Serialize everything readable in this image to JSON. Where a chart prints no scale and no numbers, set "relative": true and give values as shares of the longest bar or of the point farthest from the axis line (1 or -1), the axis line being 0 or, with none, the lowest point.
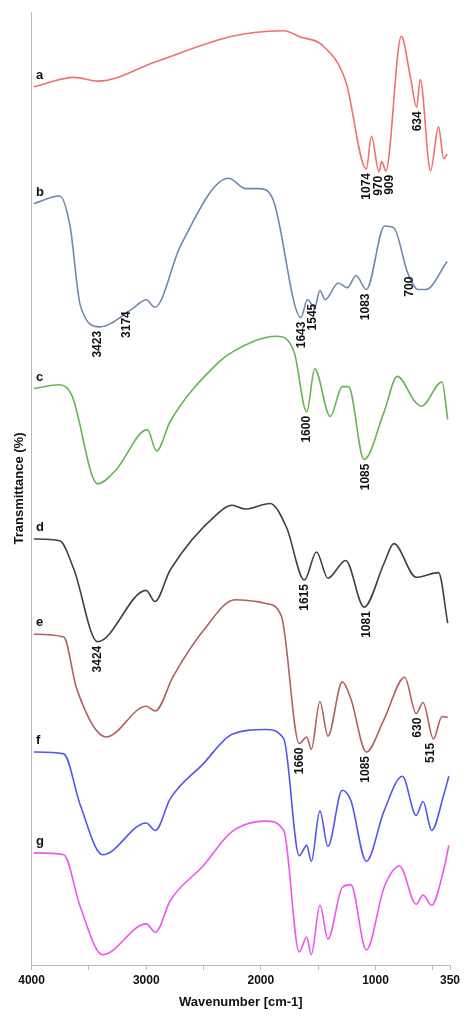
{
  "chart_data": {
    "type": "line",
    "relative": true,
    "xlabel": "Wavenumber [cm-1]",
    "ylabel": "Transmittance (%)",
    "xlim": [
      4000,
      350
    ],
    "xticks": [
      4000,
      {
        "value": 3500,
        "label": null
      },
      3000,
      {
        "value": 2500,
        "label": null
      },
      2000,
      {
        "value": 1500,
        "label": null
      },
      1000,
      {
        "value": 500,
        "label": null
      },
      350
    ],
    "grid": false,
    "legend": false,
    "marker": "none",
    "line_style": "solid",
    "series": [
      {
        "name": "a",
        "color": "#f07070",
        "x": [
          3980,
          3630,
          3420,
          2910,
          2250,
          1800,
          1650,
          1470,
          1260,
          1080,
          1035,
          970,
          945,
          910,
          775,
          695,
          640,
          610,
          520,
          450,
          405,
          375
        ],
        "values": [
          0.94,
          0.95,
          0.946,
          0.967,
          0.994,
          1.0,
          0.993,
          0.985,
          0.946,
          0.852,
          0.887,
          0.849,
          0.86,
          0.85,
          0.994,
          0.95,
          0.918,
          0.948,
          0.85,
          0.897,
          0.863,
          0.868
        ]
      },
      {
        "name": "b",
        "color": "#7088b0",
        "x": [
          3980,
          3755,
          3665,
          3575,
          3405,
          3125,
          3000,
          2925,
          2700,
          2280,
          2135,
          2010,
          1890,
          1650,
          1595,
          1530,
          1485,
          1440,
          1325,
          1245,
          1170,
          1080,
          920,
          840,
          720,
          630,
          560,
          375
        ],
        "values": [
          0.815,
          0.823,
          0.791,
          0.706,
          0.683,
          0.702,
          0.712,
          0.704,
          0.77,
          0.842,
          0.831,
          0.831,
          0.818,
          0.693,
          0.712,
          0.704,
          0.722,
          0.712,
          0.73,
          0.725,
          0.738,
          0.723,
          0.791,
          0.789,
          0.741,
          0.723,
          0.723,
          0.753
        ]
      },
      {
        "name": "c",
        "color": "#66b455",
        "x": [
          3980,
          3755,
          3650,
          3425,
          3270,
          2990,
          2910,
          2790,
          2370,
          2250,
          1865,
          1710,
          1600,
          1530,
          1395,
          1290,
          1235,
          1100,
          925,
          810,
          655,
          600,
          420,
          370
        ],
        "values": [
          0.617,
          0.621,
          0.61,
          0.515,
          0.529,
          0.573,
          0.55,
          0.582,
          0.645,
          0.656,
          0.673,
          0.656,
          0.592,
          0.638,
          0.587,
          0.619,
          0.619,
          0.541,
          0.592,
          0.63,
          0.603,
          0.598,
          0.624,
          0.584
        ]
      },
      {
        "name": "d",
        "color": "#404040",
        "x": [
          3980,
          3755,
          3630,
          3425,
          3000,
          2925,
          2790,
          2370,
          2250,
          2135,
          1920,
          1775,
          1620,
          1515,
          1415,
          1260,
          1100,
          925,
          840,
          645,
          450,
          370
        ],
        "values": [
          0.456,
          0.454,
          0.423,
          0.346,
          0.401,
          0.389,
          0.423,
          0.484,
          0.492,
          0.488,
          0.494,
          0.468,
          0.412,
          0.442,
          0.414,
          0.433,
          0.383,
          0.43,
          0.451,
          0.415,
          0.42,
          0.366
        ]
      },
      {
        "name": "e",
        "color": "#b06060",
        "x": [
          3980,
          3720,
          3605,
          3350,
          3000,
          2920,
          2765,
          2495,
          2225,
          1955,
          1820,
          1665,
          1600,
          1560,
          1485,
          1415,
          1290,
          1215,
          1080,
          925,
          745,
          645,
          585,
          495,
          420,
          370
        ],
        "values": [
          0.354,
          0.351,
          0.295,
          0.244,
          0.277,
          0.272,
          0.309,
          0.359,
          0.391,
          0.387,
          0.373,
          0.237,
          0.244,
          0.231,
          0.282,
          0.245,
          0.303,
          0.285,
          0.228,
          0.263,
          0.308,
          0.269,
          0.281,
          0.242,
          0.266,
          0.265
        ]
      },
      {
        "name": "f",
        "color": "#5555ee",
        "x": [
          3980,
          3720,
          3575,
          3380,
          3000,
          2920,
          2790,
          2505,
          2250,
          1955,
          1800,
          1665,
          1600,
          1560,
          1485,
          1415,
          1290,
          1215,
          1080,
          925,
          765,
          645,
          585,
          510,
          405,
          360
        ],
        "values": [
          0.228,
          0.226,
          0.171,
          0.118,
          0.152,
          0.144,
          0.178,
          0.215,
          0.247,
          0.252,
          0.242,
          0.117,
          0.128,
          0.111,
          0.165,
          0.127,
          0.187,
          0.176,
          0.111,
          0.165,
          0.202,
          0.16,
          0.175,
          0.144,
          0.182,
          0.202
        ]
      },
      {
        "name": "g",
        "color": "#ee55ee",
        "x": [
          3980,
          3720,
          3575,
          3380,
          3000,
          2920,
          2790,
          2505,
          2250,
          1955,
          1800,
          1665,
          1600,
          1560,
          1485,
          1415,
          1290,
          1215,
          1080,
          925,
          790,
          645,
          585,
          510,
          405,
          360
        ],
        "values": [
          0.12,
          0.118,
          0.062,
          0.011,
          0.044,
          0.035,
          0.069,
          0.106,
          0.143,
          0.154,
          0.144,
          0.014,
          0.03,
          0.011,
          0.064,
          0.028,
          0.083,
          0.086,
          0.016,
          0.083,
          0.106,
          0.065,
          0.075,
          0.064,
          0.102,
          0.128
        ]
      }
    ],
    "annotations": [
      {
        "text": "1074",
        "x": 1074,
        "y": 0.852
      },
      {
        "text": "970",
        "x": 970,
        "y": 0.849
      },
      {
        "text": "909",
        "x": 909,
        "y": 0.85
      },
      {
        "text": "634",
        "x": 634,
        "y": 0.918
      },
      {
        "text": "3423",
        "x": 3423,
        "y": 0.683
      },
      {
        "text": "3174",
        "x": 3174,
        "y": 0.704
      },
      {
        "text": "1643",
        "x": 1643,
        "y": 0.693
      },
      {
        "text": "1545",
        "x": 1545,
        "y": 0.712
      },
      {
        "text": "1083",
        "x": 1083,
        "y": 0.723
      },
      {
        "text": "700",
        "x": 700,
        "y": 0.741
      },
      {
        "text": "1600",
        "x": 1600,
        "y": 0.592
      },
      {
        "text": "1085",
        "x": 1085,
        "y": 0.541
      },
      {
        "text": "3424",
        "x": 3424,
        "y": 0.346
      },
      {
        "text": "1615",
        "x": 1615,
        "y": 0.412
      },
      {
        "text": "1081",
        "x": 1081,
        "y": 0.383
      },
      {
        "text": "1660",
        "x": 1660,
        "y": 0.237
      },
      {
        "text": "1085",
        "x": 1085,
        "y": 0.228
      },
      {
        "text": "630",
        "x": 630,
        "y": 0.269
      },
      {
        "text": "515",
        "x": 515,
        "y": 0.242
      }
    ]
  }
}
